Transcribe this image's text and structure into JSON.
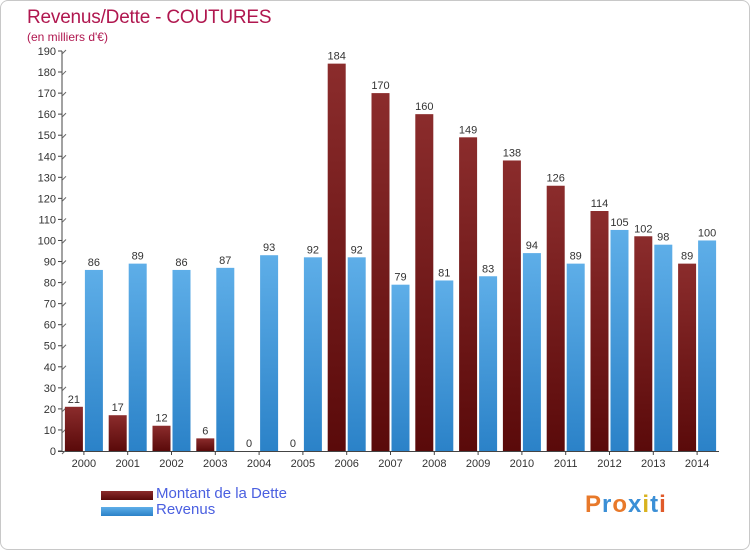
{
  "header": {
    "title": "Revenus/Dette - COUTURES",
    "subtitle": "(en milliers d'€)"
  },
  "legend": [
    {
      "label": "Montant de la Dette",
      "color": "#7a1a1a"
    },
    {
      "label": "Revenus",
      "color": "#3f97db"
    }
  ],
  "logo": {
    "text": "Proxiti",
    "colors": [
      "#e8792a",
      "#3b8fd6",
      "#e8792a",
      "#3b8fd6",
      "#d9b21f",
      "#3b8fd6",
      "#e05a2a"
    ]
  },
  "chart_data": {
    "type": "bar",
    "title": "Revenus/Dette - COUTURES",
    "subtitle": "(en milliers d'€)",
    "categories": [
      "2000",
      "2001",
      "2002",
      "2003",
      "2004",
      "2005",
      "2006",
      "2007",
      "2008",
      "2009",
      "2010",
      "2011",
      "2012",
      "2013",
      "2014"
    ],
    "series": [
      {
        "name": "Montant de la Dette",
        "color": "#7a1a1a",
        "values": [
          21,
          17,
          12,
          6,
          0,
          0,
          184,
          170,
          160,
          149,
          138,
          126,
          114,
          102,
          89
        ]
      },
      {
        "name": "Revenus",
        "color": "#3f97db",
        "values": [
          86,
          89,
          86,
          87,
          93,
          92,
          92,
          79,
          81,
          83,
          94,
          89,
          105,
          98,
          100
        ]
      }
    ],
    "ylim": [
      0,
      190
    ],
    "yticks": [
      0,
      10,
      20,
      30,
      40,
      50,
      60,
      70,
      80,
      90,
      100,
      110,
      120,
      130,
      140,
      150,
      160,
      170,
      180,
      190
    ],
    "grid": false,
    "legend_position": "bottom-left"
  }
}
